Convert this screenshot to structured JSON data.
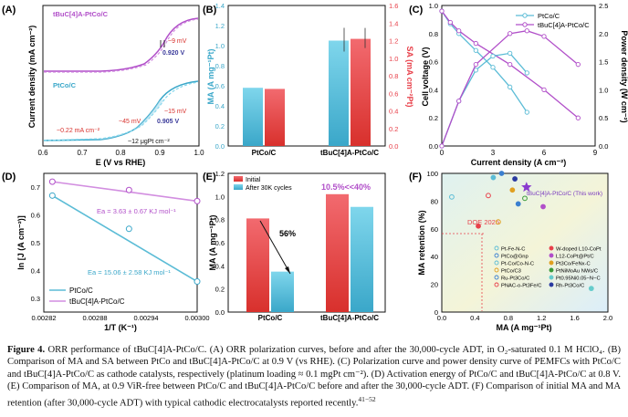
{
  "colors": {
    "ptco": "#5bbcd6",
    "tbuc": "#b14fc9",
    "bar_blue": "#5bbcd6",
    "bar_red": "#e8404a",
    "pink_axis": "#e8404a",
    "blue_axis": "#3aa7c9",
    "red_ann": "#d8302c"
  },
  "panels": {
    "A": {
      "label": "(A)",
      "ylabel": "Current density (mA cm⁻²)",
      "xlabel": "E (V vs RHE)",
      "legend_top": "tBuC[4]A-PtCo/C",
      "legend_bottom": "PtCo/C",
      "ann_top_shift": "~9 mV",
      "ann_top_e": "0.920 V",
      "ann_b_e": "0.905 V",
      "ann_b_shift": "~15 mV",
      "ann_b_mid": "~45 mV",
      "ann_b_low": "~0.22 mA cm⁻²",
      "ann_loading": "~12 μgPt cm⁻²",
      "xticks": [
        "0.6",
        "0.7",
        "0.8",
        "0.9",
        "1.0"
      ]
    },
    "B": {
      "label": "(B)",
      "ylabel_left": "MA (A mg⁻¹Pt)",
      "ylabel_right": "SA (mA cm⁻²Pt)",
      "categories": [
        "PtCo/C",
        "tBuC[4]A-PtCo/C"
      ],
      "yticks_left": [
        "0.0",
        "0.2",
        "0.4",
        "0.6",
        "0.8",
        "1.0",
        "1.2",
        "1.4"
      ],
      "yticks_right": [
        "0.0",
        "0.2",
        "0.4",
        "0.6",
        "0.8",
        "1.0",
        "1.2",
        "1.4",
        "1.6"
      ]
    },
    "C": {
      "label": "(C)",
      "ylabel_left": "Cell voltage (V)",
      "ylabel_right": "Power density (W cm⁻²)",
      "xlabel": "Current density (A cm⁻²)",
      "legend": [
        "PtCo/C",
        "tBuC[4]A-PtCo/C"
      ],
      "xticks": [
        "0",
        "3",
        "6",
        "9"
      ],
      "yticks_left": [
        "0.0",
        "0.2",
        "0.4",
        "0.6",
        "0.8",
        "1.0"
      ],
      "yticks_right": [
        "0.0",
        "0.5",
        "1.0",
        "1.5",
        "2.0",
        "2.5"
      ]
    },
    "D": {
      "label": "(D)",
      "ylabel": "ln [J (A cm⁻²)]",
      "xlabel": "1/T (K⁻¹)",
      "ea_tbuc": "Ea = 3.63 ± 0.67 KJ mol⁻¹",
      "ea_ptco": "Ea = 15.06 ± 2.58 KJ mol⁻¹",
      "legend": [
        "PtCo/C",
        "tBuC[4]A-PtCo/C"
      ],
      "xticks": [
        "0.00282",
        "0.00288",
        "0.00294",
        "0.00300"
      ],
      "yticks": [
        "0.3",
        "0.4",
        "0.5",
        "0.6",
        "0.7"
      ]
    },
    "E": {
      "label": "(E)",
      "ylabel": "MA (A mg⁻¹Pt)",
      "legend": [
        "Initial",
        "After 30K cycles"
      ],
      "ann_ptco": "56%",
      "ann_tbuc": "10.5%<<40%",
      "categories": [
        "PtCo/C",
        "tBuC[4]A-PtCo/C"
      ],
      "yticks": [
        "0.0",
        "0.2",
        "0.4",
        "0.6",
        "0.8",
        "1.0",
        "1.2"
      ]
    },
    "F": {
      "label": "(F)",
      "ylabel": "MA retention (%)",
      "xlabel": "MA (A mg⁻¹Pt)",
      "doe": "DOE 2025",
      "this_work": "tBuC[4]A-PtCo/C (This work)",
      "xticks": [
        "0.0",
        "0.4",
        "0.8",
        "1.2",
        "1.6",
        "2.0"
      ],
      "yticks": [
        "0",
        "20",
        "40",
        "60",
        "80",
        "100"
      ],
      "legend_left": [
        "Pt-Fe-N-C",
        "PtCo@Gnp",
        "Pt-Co/Co-N-C",
        "PtCo/C3",
        "Ru-Pt3Co/C",
        "PNAC-o-Pt3Fe/C"
      ],
      "legend_right": [
        "W-doped L10-CoPt",
        "L12-CoPt@Pt/C",
        "Pt3Co/FeNx-C",
        "PtNiMoAu NWs/C",
        "Pt0.95Ni0.05−N−C",
        "Rh-Pt3Co/C"
      ]
    }
  },
  "chart_data": [
    {
      "type": "line",
      "panel": "A",
      "title": "ORR polarization curves",
      "xlabel": "E (V vs RHE)",
      "ylabel": "Current density (mA cm⁻²)",
      "xlim": [
        0.6,
        1.0
      ],
      "series": [
        {
          "name": "tBuC[4]A-PtCo/C initial",
          "x": [
            0.6,
            0.8,
            0.88,
            0.92,
            0.95,
            1.0
          ],
          "y": [
            -5.6,
            -5.4,
            -4.6,
            -2.8,
            -1.0,
            0.0
          ]
        },
        {
          "name": "PtCo/C initial",
          "x": [
            0.6,
            0.8,
            0.87,
            0.905,
            0.94,
            1.0
          ],
          "y": [
            -5.6,
            -5.3,
            -4.2,
            -2.6,
            -0.8,
            0.0
          ]
        }
      ]
    },
    {
      "type": "bar",
      "panel": "B",
      "title": "MA and SA at 0.9 V",
      "categories": [
        "PtCo/C",
        "tBuC[4]A-PtCo/C"
      ],
      "series": [
        {
          "name": "MA",
          "values": [
            0.58,
            1.05
          ],
          "unit": "A mgPt⁻¹"
        },
        {
          "name": "SA",
          "values": [
            0.65,
            1.22
          ],
          "unit": "mA cmPt⁻²"
        }
      ],
      "ylim_left": [
        0,
        1.4
      ],
      "ylim_right": [
        0,
        1.6
      ]
    },
    {
      "type": "line",
      "panel": "C",
      "title": "Polarization and power density",
      "xlabel": "Current density (A cm⁻²)",
      "xlim": [
        0,
        9
      ],
      "series": [
        {
          "name": "PtCo/C voltage",
          "x": [
            0,
            0.5,
            1,
            2,
            3,
            4,
            5
          ],
          "y": [
            0.96,
            0.87,
            0.8,
            0.68,
            0.56,
            0.42,
            0.24
          ]
        },
        {
          "name": "tBuC[4]A-PtCo/C voltage",
          "x": [
            0,
            0.5,
            1,
            2,
            4,
            6,
            8
          ],
          "y": [
            0.96,
            0.88,
            0.82,
            0.73,
            0.58,
            0.4,
            0.2
          ]
        },
        {
          "name": "PtCo/C power",
          "x": [
            0,
            1,
            2,
            3,
            4,
            5
          ],
          "y": [
            0,
            0.8,
            1.35,
            1.6,
            1.65,
            1.3
          ]
        },
        {
          "name": "tBuC[4]A-PtCo/C power",
          "x": [
            0,
            1,
            2,
            4,
            5,
            6,
            8
          ],
          "y": [
            0,
            0.8,
            1.45,
            2.0,
            2.05,
            1.95,
            1.45
          ]
        }
      ]
    },
    {
      "type": "scatter",
      "panel": "D",
      "title": "Activation energy",
      "xlabel": "1/T (K⁻¹)",
      "ylabel": "ln J",
      "xlim": [
        0.00282,
        0.003
      ],
      "ylim": [
        0.25,
        0.75
      ],
      "series": [
        {
          "name": "PtCo/C",
          "x": [
            0.00283,
            0.00292,
            0.003
          ],
          "y": [
            0.67,
            0.55,
            0.36
          ]
        },
        {
          "name": "tBuC[4]A-PtCo/C",
          "x": [
            0.00283,
            0.00292,
            0.003
          ],
          "y": [
            0.72,
            0.69,
            0.65
          ]
        }
      ]
    },
    {
      "type": "bar",
      "panel": "E",
      "title": "MA before and after 30K cycles",
      "categories": [
        "PtCo/C",
        "tBuC[4]A-PtCo/C"
      ],
      "series": [
        {
          "name": "Initial",
          "values": [
            0.81,
            1.02
          ]
        },
        {
          "name": "After 30K cycles",
          "values": [
            0.35,
            0.91
          ]
        }
      ],
      "ylim": [
        0,
        1.2
      ]
    },
    {
      "type": "scatter",
      "panel": "F",
      "title": "MA vs MA retention",
      "xlabel": "MA (A mgPt⁻¹)",
      "ylabel": "MA retention (%)",
      "xlim": [
        0,
        2.0
      ],
      "ylim": [
        0,
        100
      ],
      "points": [
        {
          "name": "Pt-Fe-N-C",
          "x": 0.12,
          "y": 83
        },
        {
          "name": "PtCo@Gnp",
          "x": 0.72,
          "y": 100
        },
        {
          "name": "Pt-Co/Co-N-C",
          "x": 0.62,
          "y": 97
        },
        {
          "name": "PtCo/C3",
          "x": 0.68,
          "y": 65
        },
        {
          "name": "Ru-Pt3Co/C",
          "x": 0.92,
          "y": 78
        },
        {
          "name": "PNAC-o-Pt3Fe/C",
          "x": 0.44,
          "y": 62
        },
        {
          "name": "W-doped L10-CoPt",
          "x": 0.56,
          "y": 84
        },
        {
          "name": "L12-CoPt@Pt/C",
          "x": 1.22,
          "y": 76
        },
        {
          "name": "Pt3Co/FeNx-C",
          "x": 0.85,
          "y": 88
        },
        {
          "name": "PtNiMoAu NWs/C",
          "x": 1.0,
          "y": 82
        },
        {
          "name": "Pt0.95Ni0.05−N−C",
          "x": 1.8,
          "y": 17
        },
        {
          "name": "Rh-Pt3Co/C",
          "x": 0.88,
          "y": 96
        },
        {
          "name": "tBuC[4]A-PtCo/C (This work)",
          "x": 1.02,
          "y": 90
        }
      ]
    }
  ],
  "caption": {
    "fig": "Figure 4.",
    "text": " ORR performance of tBuC[4]A-PtCo/C. (A) ORR polarization curves, before and after the 30,000-cycle ADT, in O₂-saturated 0.1 M HClO₄. (B) Comparison of MA and SA between PtCo and tBuC[4]A-PtCo/C at 0.9 V (vs RHE). (C) Polarization curve and power density curve of PEMFCs with PtCo/C and tBuC[4]A-PtCo/C as cathode catalysts, respectively (platinum loading ≈ 0.1 mgPt cm⁻²). (D) Activation energy of PtCo/C and tBuC[4]A-PtCo/C at 0.8 V. (E) Comparison of MA, at 0.9 ViR-free between PtCo/C and tBuC[4]A-PtCo/C before and after the 30,000-cycle ADT. (F) Comparison of initial MA and MA retention (after 30,000-cycle ADT) with typical cathodic electrocatalysts reported recently.",
    "refs": "41−52"
  }
}
